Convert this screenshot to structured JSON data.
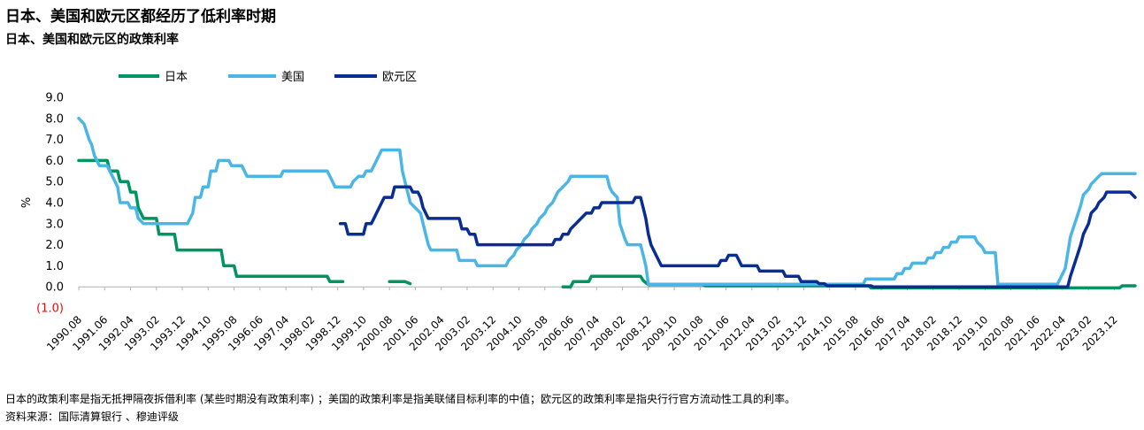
{
  "header": {
    "title": "日本、美国和欧元区都经历了低利率时期",
    "subtitle": "日本、美国和欧元区的政策利率"
  },
  "footer": {
    "note": "日本的政策利率是指无抵押隔夜拆借利率 (某些时期没有政策利率) ；美国的政策利率是指美联储目标利率的中值；欧元区的政策利率是指央行行官方流动性工具的利率。",
    "source": "资料来源：国际清算银行 、穆迪评级"
  },
  "chart_data": {
    "type": "line",
    "ylabel": "%",
    "ylim": [
      -1.0,
      9.0
    ],
    "yticks": [
      9.0,
      8.0,
      7.0,
      6.0,
      5.0,
      4.0,
      3.0,
      2.0,
      1.0,
      0.0,
      -1.0
    ],
    "ytick_labels": [
      "9.0",
      "8.0",
      "7.0",
      "6.0",
      "5.0",
      "4.0",
      "3.0",
      "2.0",
      "1.0",
      "0.0",
      "(1.0)"
    ],
    "xlim": [
      "1990.08",
      "2024.08"
    ],
    "xtick_labels": [
      "1990.08",
      "1991.06",
      "1992.04",
      "1993.02",
      "1993.12",
      "1994.10",
      "1995.08",
      "1996.06",
      "1997.04",
      "1998.02",
      "1998.12",
      "1999.10",
      "2000.08",
      "2001.06",
      "2002.04",
      "2003.02",
      "2003.12",
      "2004.10",
      "2005.08",
      "2006.06",
      "2007.04",
      "2008.02",
      "2008.12",
      "2009.10",
      "2010.08",
      "2011.06",
      "2012.04",
      "2013.02",
      "2013.12",
      "2014.10",
      "2015.08",
      "2016.06",
      "2017.04",
      "2018.02",
      "2018.12",
      "2019.10",
      "2020.08",
      "2021.06",
      "2022.04",
      "2023.02",
      "2023.12"
    ],
    "legend_position": "top-left",
    "grid": false,
    "series": [
      {
        "name": "日本",
        "color": "#00945e",
        "segments": [
          [
            [
              "1990.08",
              6.0
            ],
            [
              "1991.07",
              6.0
            ],
            [
              "1991.08",
              5.5
            ],
            [
              "1991.11",
              5.5
            ],
            [
              "1991.12",
              5.0
            ],
            [
              "1992.03",
              5.0
            ],
            [
              "1992.04",
              4.5
            ],
            [
              "1992.06",
              4.5
            ],
            [
              "1992.07",
              3.75
            ],
            [
              "1992.09",
              3.25
            ],
            [
              "1993.02",
              3.25
            ],
            [
              "1993.03",
              2.5
            ],
            [
              "1993.09",
              2.5
            ],
            [
              "1993.10",
              1.75
            ],
            [
              "1995.03",
              1.75
            ],
            [
              "1995.04",
              1.0
            ],
            [
              "1995.08",
              1.0
            ],
            [
              "1995.09",
              0.5
            ],
            [
              "1998.08",
              0.5
            ],
            [
              "1998.09",
              0.25
            ],
            [
              "1999.02",
              0.25
            ]
          ],
          [
            [
              "2000.08",
              0.25
            ],
            [
              "2001.02",
              0.25
            ],
            [
              "2001.04",
              0.15
            ]
          ],
          [
            [
              "2006.03",
              0.0
            ],
            [
              "2006.06",
              0.0
            ],
            [
              "2006.07",
              0.25
            ],
            [
              "2007.01",
              0.25
            ],
            [
              "2007.02",
              0.5
            ],
            [
              "2008.09",
              0.5
            ],
            [
              "2008.10",
              0.3
            ],
            [
              "2008.12",
              0.1
            ],
            [
              "2010.09",
              0.1
            ],
            [
              "2010.10",
              0.05
            ],
            [
              "2013.04",
              0.05
            ],
            [
              "2016.02",
              -0.05
            ],
            [
              "2024.02",
              -0.05
            ],
            [
              "2024.03",
              0.05
            ],
            [
              "2024.08",
              0.05
            ]
          ]
        ]
      },
      {
        "name": "美国",
        "color": "#4bb6e6",
        "segments": [
          [
            [
              "1990.08",
              8.0
            ],
            [
              "1990.10",
              7.75
            ],
            [
              "1990.12",
              7.0
            ],
            [
              "1991.01",
              6.75
            ],
            [
              "1991.02",
              6.25
            ],
            [
              "1991.04",
              5.75
            ],
            [
              "1991.08",
              5.5
            ],
            [
              "1991.10",
              5.0
            ],
            [
              "1991.11",
              4.75
            ],
            [
              "1991.12",
              4.0
            ],
            [
              "1992.04",
              3.75
            ],
            [
              "1992.07",
              3.25
            ],
            [
              "1992.09",
              3.0
            ],
            [
              "1994.02",
              3.0
            ],
            [
              "1994.03",
              3.25
            ],
            [
              "1994.04",
              3.5
            ],
            [
              "1994.05",
              4.25
            ],
            [
              "1994.08",
              4.75
            ],
            [
              "1994.11",
              5.5
            ],
            [
              "1995.02",
              6.0
            ],
            [
              "1995.07",
              5.75
            ],
            [
              "1995.12",
              5.5
            ],
            [
              "1996.01",
              5.25
            ],
            [
              "1997.03",
              5.5
            ],
            [
              "1998.09",
              5.25
            ],
            [
              "1998.10",
              5.0
            ],
            [
              "1998.11",
              4.75
            ],
            [
              "1999.06",
              5.0
            ],
            [
              "1999.08",
              5.25
            ],
            [
              "1999.11",
              5.5
            ],
            [
              "2000.02",
              5.75
            ],
            [
              "2000.03",
              6.0
            ],
            [
              "2000.05",
              6.5
            ],
            [
              "2001.01",
              5.5
            ],
            [
              "2001.02",
              5.0
            ],
            [
              "2001.03",
              4.5
            ],
            [
              "2001.04",
              4.0
            ],
            [
              "2001.06",
              3.75
            ],
            [
              "2001.08",
              3.5
            ],
            [
              "2001.09",
              3.0
            ],
            [
              "2001.10",
              2.5
            ],
            [
              "2001.11",
              2.0
            ],
            [
              "2001.12",
              1.75
            ],
            [
              "2002.11",
              1.25
            ],
            [
              "2003.06",
              1.0
            ],
            [
              "2004.06",
              1.25
            ],
            [
              "2004.08",
              1.5
            ],
            [
              "2004.09",
              1.75
            ],
            [
              "2004.11",
              2.0
            ],
            [
              "2004.12",
              2.25
            ],
            [
              "2005.02",
              2.5
            ],
            [
              "2005.03",
              2.75
            ],
            [
              "2005.05",
              3.0
            ],
            [
              "2005.06",
              3.25
            ],
            [
              "2005.08",
              3.5
            ],
            [
              "2005.09",
              3.75
            ],
            [
              "2005.11",
              4.0
            ],
            [
              "2005.12",
              4.25
            ],
            [
              "2006.01",
              4.5
            ],
            [
              "2006.03",
              4.75
            ],
            [
              "2006.05",
              5.0
            ],
            [
              "2006.06",
              5.25
            ],
            [
              "2007.08",
              5.25
            ],
            [
              "2007.09",
              4.75
            ],
            [
              "2007.10",
              4.5
            ],
            [
              "2007.12",
              4.25
            ],
            [
              "2008.01",
              3.0
            ],
            [
              "2008.03",
              2.25
            ],
            [
              "2008.04",
              2.0
            ],
            [
              "2008.10",
              1.5
            ],
            [
              "2008.11",
              1.0
            ],
            [
              "2008.12",
              0.125
            ],
            [
              "2015.12",
              0.375
            ],
            [
              "2016.12",
              0.625
            ],
            [
              "2017.03",
              0.875
            ],
            [
              "2017.06",
              1.125
            ],
            [
              "2017.12",
              1.375
            ],
            [
              "2018.03",
              1.625
            ],
            [
              "2018.06",
              1.875
            ],
            [
              "2018.09",
              2.125
            ],
            [
              "2018.12",
              2.375
            ],
            [
              "2019.07",
              2.125
            ],
            [
              "2019.09",
              1.875
            ],
            [
              "2019.10",
              1.625
            ],
            [
              "2020.03",
              0.125
            ],
            [
              "2022.03",
              0.375
            ],
            [
              "2022.05",
              0.875
            ],
            [
              "2022.06",
              1.625
            ],
            [
              "2022.07",
              2.375
            ],
            [
              "2022.09",
              3.125
            ],
            [
              "2022.11",
              3.875
            ],
            [
              "2022.12",
              4.375
            ],
            [
              "2023.02",
              4.625
            ],
            [
              "2023.03",
              4.875
            ],
            [
              "2023.05",
              5.125
            ],
            [
              "2023.07",
              5.375
            ],
            [
              "2024.08",
              5.375
            ]
          ]
        ]
      },
      {
        "name": "欧元区",
        "color": "#0a2d94",
        "segments": [
          [
            [
              "1999.01",
              3.0
            ],
            [
              "1999.04",
              2.5
            ],
            [
              "1999.11",
              3.0
            ],
            [
              "2000.02",
              3.25
            ],
            [
              "2000.03",
              3.5
            ],
            [
              "2000.04",
              3.75
            ],
            [
              "2000.06",
              4.25
            ],
            [
              "2000.10",
              4.75
            ],
            [
              "2001.05",
              4.5
            ],
            [
              "2001.08",
              4.25
            ],
            [
              "2001.09",
              3.75
            ],
            [
              "2001.11",
              3.25
            ],
            [
              "2002.12",
              2.75
            ],
            [
              "2003.03",
              2.5
            ],
            [
              "2003.06",
              2.0
            ],
            [
              "2005.12",
              2.25
            ],
            [
              "2006.03",
              2.5
            ],
            [
              "2006.06",
              2.75
            ],
            [
              "2006.08",
              3.0
            ],
            [
              "2006.10",
              3.25
            ],
            [
              "2006.12",
              3.5
            ],
            [
              "2007.03",
              3.75
            ],
            [
              "2007.06",
              4.0
            ],
            [
              "2008.07",
              4.25
            ],
            [
              "2008.10",
              3.75
            ],
            [
              "2008.11",
              3.25
            ],
            [
              "2008.12",
              2.5
            ],
            [
              "2009.01",
              2.0
            ],
            [
              "2009.03",
              1.5
            ],
            [
              "2009.04",
              1.25
            ],
            [
              "2009.05",
              1.0
            ],
            [
              "2011.04",
              1.25
            ],
            [
              "2011.07",
              1.5
            ],
            [
              "2011.11",
              1.25
            ],
            [
              "2011.12",
              1.0
            ],
            [
              "2012.07",
              0.75
            ],
            [
              "2013.05",
              0.5
            ],
            [
              "2013.11",
              0.25
            ],
            [
              "2014.06",
              0.15
            ],
            [
              "2014.09",
              0.05
            ],
            [
              "2016.03",
              0.0
            ],
            [
              "2022.07",
              0.5
            ],
            [
              "2022.09",
              1.25
            ],
            [
              "2022.11",
              2.0
            ],
            [
              "2022.12",
              2.5
            ],
            [
              "2023.02",
              3.0
            ],
            [
              "2023.03",
              3.5
            ],
            [
              "2023.05",
              3.75
            ],
            [
              "2023.06",
              4.0
            ],
            [
              "2023.08",
              4.25
            ],
            [
              "2023.09",
              4.5
            ],
            [
              "2024.06",
              4.5
            ],
            [
              "2024.08",
              4.25
            ]
          ]
        ]
      }
    ]
  }
}
